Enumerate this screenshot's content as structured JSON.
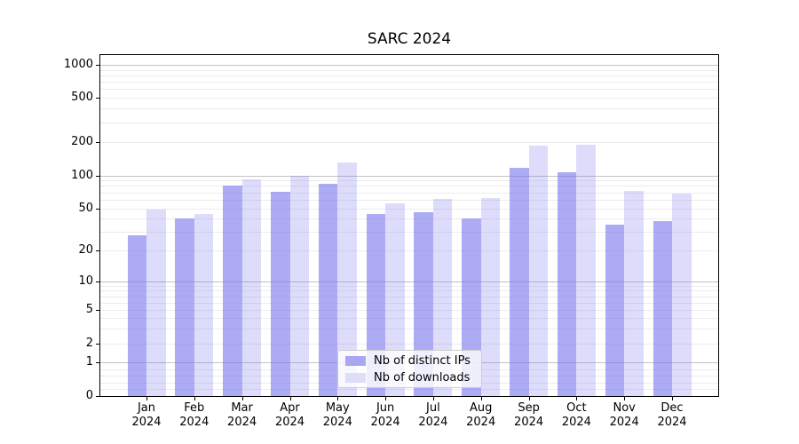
{
  "chart_data": {
    "type": "bar",
    "title": "SARC 2024",
    "categories": [
      "Jan 2024",
      "Feb 2024",
      "Mar 2024",
      "Apr 2024",
      "May 2024",
      "Jun 2024",
      "Jul 2024",
      "Aug 2024",
      "Sep 2024",
      "Oct 2024",
      "Nov 2024",
      "Dec 2024"
    ],
    "series": [
      {
        "name": "Nb of distinct IPs",
        "color": "#7977ee",
        "alpha": 0.62,
        "swatch": "#a8a7f3",
        "values": [
          28,
          40,
          80,
          71,
          83,
          44,
          46,
          40,
          117,
          107,
          35,
          38
        ]
      },
      {
        "name": "Nb of downloads",
        "color": "#7977ee",
        "alpha": 0.25,
        "swatch": "#dedefa",
        "values": [
          49,
          44,
          92,
          100,
          131,
          55,
          61,
          62,
          186,
          190,
          72,
          68
        ]
      }
    ],
    "yscale": "symlog",
    "yticks": [
      0,
      1,
      2,
      5,
      10,
      20,
      50,
      100,
      200,
      500,
      1000
    ],
    "ylim": [
      0,
      1100
    ],
    "grid": true,
    "grid_major_color": "#c2c2c2",
    "grid_minor_color": "#ececec",
    "legend_position": "lower center"
  }
}
